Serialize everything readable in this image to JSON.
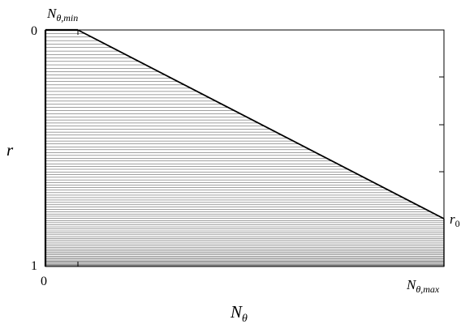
{
  "figure": {
    "y_axis": {
      "label": "r",
      "tick_top": "0",
      "tick_bottom": "1"
    },
    "x_axis": {
      "label_base": "N",
      "label_sub": "θ",
      "tick_left": "0"
    },
    "annotations": {
      "n_min_base": "N",
      "n_min_sub": "θ,min",
      "n_max_base": "N",
      "n_max_sub": "θ,max",
      "r0_base": "r",
      "r0_sub": "0"
    },
    "hatching": {
      "color": "#000000",
      "line_count": 96,
      "spacing": "denser toward r = 1"
    },
    "boundary_color": "#000000"
  }
}
